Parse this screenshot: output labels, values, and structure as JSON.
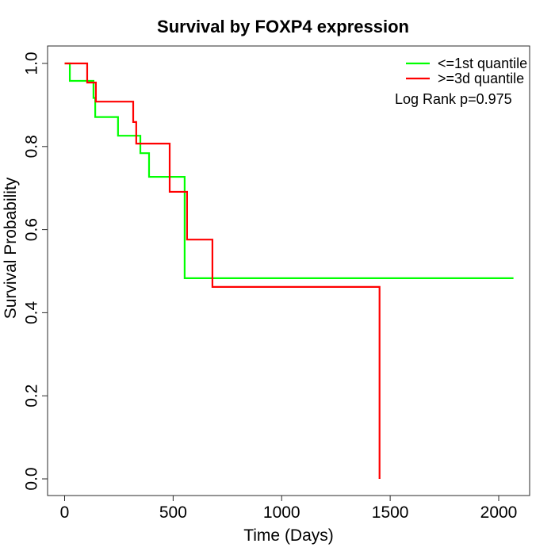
{
  "chart_data": {
    "type": "line",
    "subtype": "kaplan-meier-step",
    "title": "Survival by FOXP4 expression",
    "xlabel": "Time (Days)",
    "ylabel": "Survival Probability",
    "xlim": [
      0,
      2070
    ],
    "ylim": [
      0.0,
      1.0
    ],
    "grid": false,
    "legend_position": "top-right",
    "annotation": "Log Rank p=0.975",
    "x_ticks": [
      {
        "v": 0,
        "label": "0"
      },
      {
        "v": 500,
        "label": "500"
      },
      {
        "v": 1000,
        "label": "1000"
      },
      {
        "v": 1500,
        "label": "1500"
      },
      {
        "v": 2000,
        "label": "2000"
      }
    ],
    "y_ticks": [
      {
        "v": 0.0,
        "label": "0.0"
      },
      {
        "v": 0.2,
        "label": "0.2"
      },
      {
        "v": 0.4,
        "label": "0.4"
      },
      {
        "v": 0.6,
        "label": "0.6"
      },
      {
        "v": 0.8,
        "label": "0.8"
      },
      {
        "v": 1.0,
        "label": "1.0"
      }
    ],
    "series": [
      {
        "name": "<=1st quantile",
        "color": "#00FF00",
        "steps": [
          [
            0,
            1.0
          ],
          [
            24,
            0.958
          ],
          [
            133,
            0.917
          ],
          [
            141,
            0.871
          ],
          [
            246,
            0.826
          ],
          [
            349,
            0.784
          ],
          [
            389,
            0.727
          ],
          [
            553,
            0.483
          ],
          [
            2068,
            0.483
          ]
        ]
      },
      {
        "name": ">=3d quantile",
        "color": "#FF0000",
        "steps": [
          [
            0,
            1.0
          ],
          [
            104,
            0.954
          ],
          [
            144,
            0.908
          ],
          [
            316,
            0.859
          ],
          [
            330,
            0.807
          ],
          [
            484,
            0.691
          ],
          [
            564,
            0.576
          ],
          [
            681,
            0.462
          ],
          [
            1451,
            0.0
          ]
        ]
      }
    ]
  }
}
